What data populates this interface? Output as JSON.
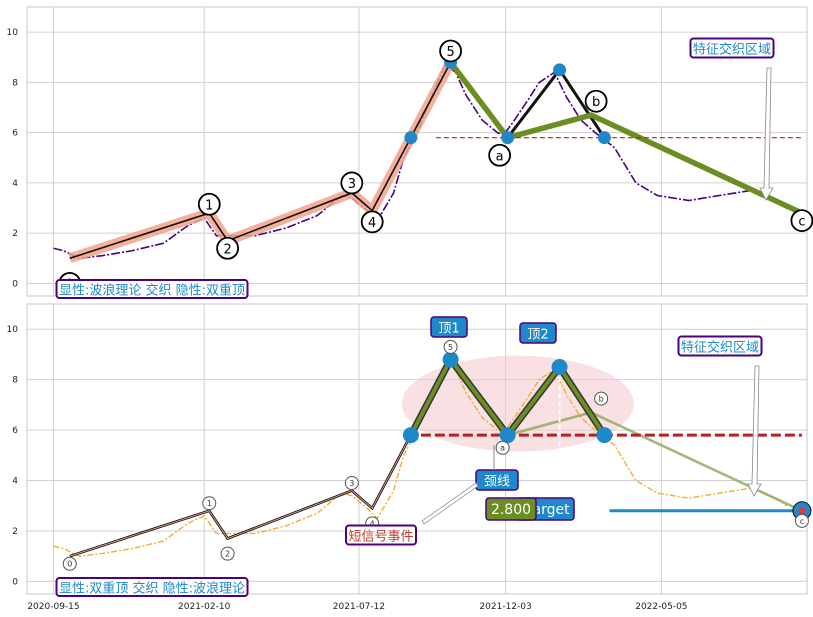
{
  "chart_data": [
    {
      "type": "line",
      "panel": "top",
      "title": "",
      "ylim": [
        -0.5,
        11
      ],
      "yticks": [
        "0",
        "2",
        "4",
        "6",
        "8",
        "10"
      ],
      "xlim": [
        "2020-08-20",
        "2022-09-25"
      ],
      "xticks": [],
      "grid": true,
      "price_series": {
        "x": [
          "2020-09-15",
          "2020-09-25",
          "2020-10-10",
          "2020-11-01",
          "2020-12-01",
          "2021-01-01",
          "2021-01-25",
          "2021-02-10",
          "2021-02-22",
          "2021-03-01",
          "2021-04-01",
          "2021-05-01",
          "2021-06-01",
          "2021-06-25",
          "2021-07-05",
          "2021-07-20",
          "2021-07-30",
          "2021-08-15",
          "2021-08-25",
          "2021-09-10",
          "2021-09-25",
          "2021-10-05",
          "2021-10-15",
          "2021-10-25",
          "2021-11-10",
          "2021-11-25",
          "2021-12-01",
          "2021-12-10",
          "2021-12-25",
          "2022-01-05",
          "2022-01-20",
          "2022-02-01",
          "2022-02-15",
          "2022-03-01",
          "2022-03-20",
          "2022-04-10",
          "2022-05-01",
          "2022-06-01",
          "2022-07-01",
          "2022-08-01",
          "2022-08-25",
          "2022-09-05"
        ],
        "y": [
          1.4,
          1.3,
          1.0,
          1.1,
          1.3,
          1.6,
          2.3,
          2.6,
          1.9,
          1.9,
          1.9,
          2.2,
          2.7,
          3.5,
          3.4,
          2.9,
          2.5,
          3.6,
          5.0,
          6.3,
          7.8,
          8.7,
          8.4,
          7.5,
          6.5,
          6.0,
          5.9,
          6.4,
          7.3,
          8.0,
          8.4,
          7.4,
          6.5,
          6.0,
          5.4,
          4.0,
          3.5,
          3.3,
          3.5,
          3.7,
          3.3,
          3.0
        ]
      },
      "wave_points": [
        {
          "label": "0",
          "x": "2020-10-01",
          "y": 1.0
        },
        {
          "label": "1",
          "x": "2021-02-15",
          "y": 2.8
        },
        {
          "label": "2",
          "x": "2021-03-05",
          "y": 1.7
        },
        {
          "label": "3",
          "x": "2021-07-05",
          "y": 3.6
        },
        {
          "label": "4",
          "x": "2021-07-25",
          "y": 2.9
        },
        {
          "label": "5",
          "x": "2021-10-10",
          "y": 8.8
        },
        {
          "label": "a",
          "x": "2021-12-05",
          "y": 5.8
        },
        {
          "label": "b",
          "x": "2022-02-25",
          "y": 6.7
        },
        {
          "label": "c",
          "x": "2022-09-20",
          "y": 2.8
        }
      ],
      "pattern_points": [
        {
          "x": "2021-09-01",
          "y": 5.8
        },
        {
          "x": "2021-10-10",
          "y": 8.8
        },
        {
          "x": "2021-12-05",
          "y": 5.8
        },
        {
          "x": "2022-01-25",
          "y": 8.5
        },
        {
          "x": "2022-03-10",
          "y": 5.8
        }
      ],
      "neckline": {
        "y": 5.8,
        "from": "2021-09-01",
        "to": "2022-09-20"
      },
      "annotations": {
        "zone": "特征交织区域",
        "legend": "显性:波浪理论 交织 隐性:双重顶"
      }
    },
    {
      "type": "line",
      "panel": "bottom",
      "title": "",
      "ylim": [
        -0.5,
        11
      ],
      "yticks": [
        "0",
        "2",
        "4",
        "6",
        "8",
        "10"
      ],
      "xlim": [
        "2020-08-20",
        "2022-09-25"
      ],
      "xticks": [
        "2020-09-15",
        "2021-02-10",
        "2021-07-12",
        "2021-12-03",
        "2022-05-05"
      ],
      "grid": true,
      "price_series": {
        "x": [
          "2020-09-15",
          "2020-09-25",
          "2020-10-10",
          "2020-11-01",
          "2020-12-01",
          "2021-01-01",
          "2021-01-25",
          "2021-02-10",
          "2021-02-22",
          "2021-03-01",
          "2021-04-01",
          "2021-05-01",
          "2021-06-01",
          "2021-06-25",
          "2021-07-05",
          "2021-07-20",
          "2021-07-30",
          "2021-08-15",
          "2021-08-25",
          "2021-09-10",
          "2021-09-25",
          "2021-10-05",
          "2021-10-15",
          "2021-10-25",
          "2021-11-10",
          "2021-11-25",
          "2021-12-01",
          "2021-12-10",
          "2021-12-25",
          "2022-01-05",
          "2022-01-20",
          "2022-02-01",
          "2022-02-15",
          "2022-03-01",
          "2022-03-20",
          "2022-04-10",
          "2022-05-01",
          "2022-06-01",
          "2022-07-01",
          "2022-08-01",
          "2022-08-25",
          "2022-09-05"
        ],
        "y": [
          1.4,
          1.3,
          1.0,
          1.1,
          1.3,
          1.6,
          2.3,
          2.6,
          1.9,
          1.9,
          1.9,
          2.2,
          2.7,
          3.5,
          3.4,
          2.9,
          2.5,
          3.6,
          5.0,
          6.3,
          7.8,
          8.7,
          8.4,
          7.5,
          6.5,
          6.0,
          5.9,
          6.4,
          7.3,
          8.0,
          8.4,
          7.4,
          6.5,
          6.0,
          5.4,
          4.0,
          3.5,
          3.3,
          3.5,
          3.7,
          3.3,
          3.0
        ]
      },
      "wave_points": [
        {
          "label": "0",
          "x": "2020-10-01",
          "y": 1.0
        },
        {
          "label": "1",
          "x": "2021-02-15",
          "y": 2.8
        },
        {
          "label": "2",
          "x": "2021-03-05",
          "y": 1.7
        },
        {
          "label": "3",
          "x": "2021-07-05",
          "y": 3.6
        },
        {
          "label": "4",
          "x": "2021-07-25",
          "y": 2.9
        },
        {
          "label": "5",
          "x": "2021-10-10",
          "y": 8.8
        },
        {
          "label": "a",
          "x": "2021-12-05",
          "y": 5.8
        },
        {
          "label": "b",
          "x": "2022-02-25",
          "y": 6.7
        },
        {
          "label": "c",
          "x": "2022-09-20",
          "y": 2.8
        }
      ],
      "pattern_points": [
        {
          "x": "2021-09-01",
          "y": 5.8
        },
        {
          "x": "2021-10-10",
          "y": 8.8
        },
        {
          "x": "2021-12-05",
          "y": 5.8
        },
        {
          "x": "2022-01-25",
          "y": 8.5
        },
        {
          "x": "2022-03-10",
          "y": 5.8
        }
      ],
      "neckline": {
        "y": 5.8,
        "from": "2021-09-01",
        "to": "2022-09-20"
      },
      "target": {
        "value": "2.800",
        "text": "Target",
        "y": 2.8,
        "from": "2022-03-15",
        "to": "2022-09-20"
      },
      "annotations": {
        "top1": "顶1",
        "top2": "顶2",
        "neck": "颈线",
        "short_signal": "短信号事件",
        "zone": "特征交织区域",
        "legend": "显性:双重顶 交织 隐性:波浪理论"
      }
    }
  ],
  "colors": {
    "price_top": "#4b0082",
    "price_bottom": "#f0b030",
    "wave_line": "#111111",
    "wave_highlight": "#f2a28a",
    "pattern_line": "#6b8e23",
    "neckline": "#b22222",
    "marker": "#1e88c8",
    "zone_fill": "#f4c6cc",
    "label_border": "#4b0082",
    "label_text": "#1e88c8"
  }
}
